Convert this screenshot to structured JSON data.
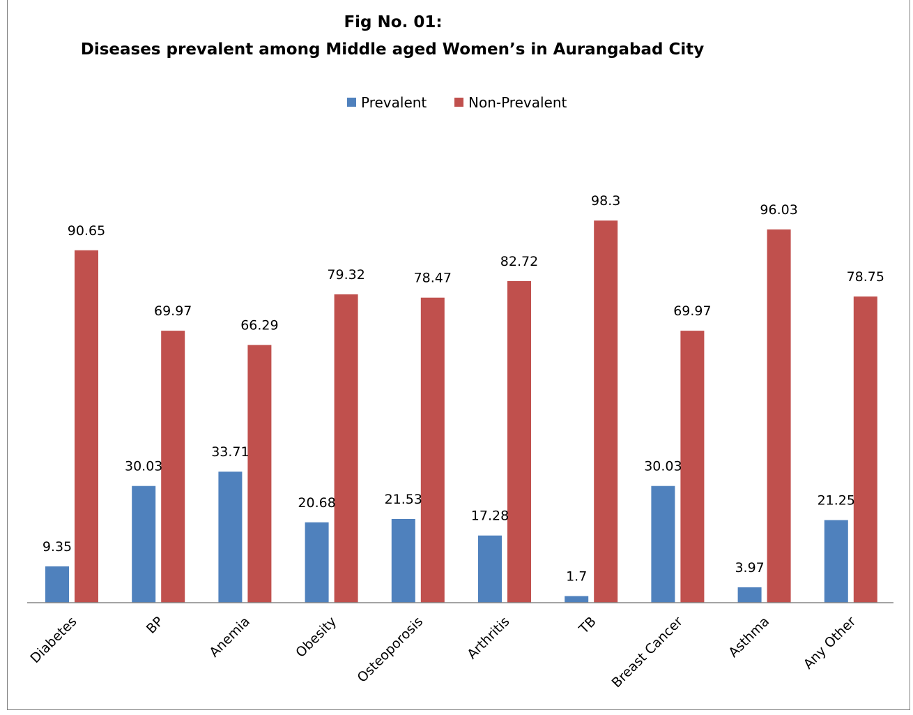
{
  "chart_data": {
    "type": "bar",
    "title": "Fig No. 01:",
    "subtitle": "Diseases prevalent among Middle aged Women’s in Aurangabad City",
    "legend_position": "top",
    "grid": false,
    "ylim": [
      0,
      110
    ],
    "categories": [
      "Diabetes",
      "BP",
      "Anemia",
      "Obesity",
      "Osteoporosis",
      "Arthritis",
      "TB",
      "Breast Cancer",
      "Asthma",
      "Any Other"
    ],
    "series": [
      {
        "name": "Prevalent",
        "color": "#4f81bd",
        "values": [
          9.35,
          30.03,
          33.71,
          20.68,
          21.53,
          17.28,
          1.7,
          30.03,
          3.97,
          21.25
        ],
        "labels": [
          "9.35",
          "30.03",
          "33.71",
          "20.68",
          "21.53",
          "17.28",
          "1.7",
          "30.03",
          "3.97",
          "21.25"
        ]
      },
      {
        "name": "Non-Prevalent",
        "color": "#c0504d",
        "values": [
          90.65,
          69.97,
          66.29,
          79.32,
          78.47,
          82.72,
          98.3,
          69.97,
          96.03,
          78.75
        ],
        "labels": [
          "90.65",
          "69.97",
          "66.29",
          "79.32",
          "78.47",
          "82.72",
          "98.3",
          "69.97",
          "96.03",
          "78.75"
        ]
      }
    ]
  }
}
